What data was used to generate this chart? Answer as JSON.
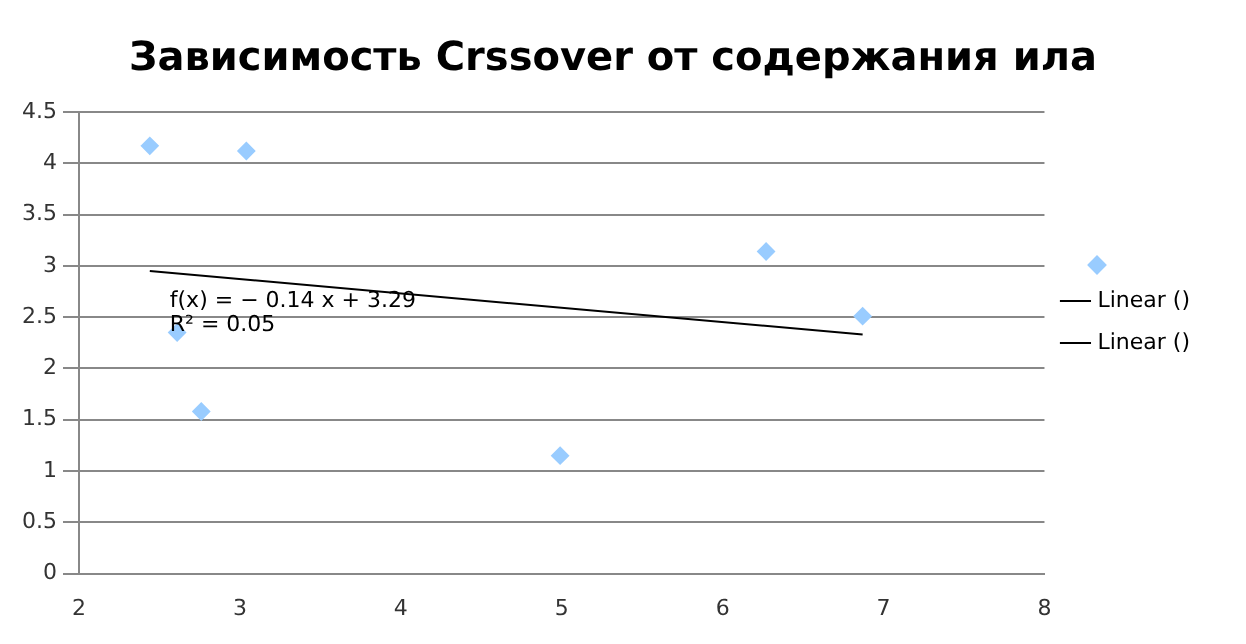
{
  "chart_data": {
    "type": "scatter",
    "title": "Зависимость Crssover от содержания ила",
    "series": [
      {
        "color": "#99ccff",
        "marker": "diamond",
        "x": [
          2.44,
          3.04,
          2.61,
          2.76,
          4.99,
          6.27,
          6.87
        ],
        "values": [
          4.17,
          4.12,
          2.35,
          1.58,
          1.15,
          3.14,
          2.51
        ]
      },
      {
        "type": "line",
        "name": "Linear ()",
        "color": "#000000",
        "marker": "none",
        "x": [
          2.44,
          6.87
        ],
        "values": [
          2.95,
          2.33
        ]
      },
      {
        "type": "line",
        "name": "Linear ()",
        "color": "#000000",
        "marker": "none"
      }
    ],
    "annotations": [
      "f(x) = − 0.14 x + 3.29",
      "R² = 0.05"
    ],
    "xlim": [
      2,
      8
    ],
    "xticks": [
      2,
      3,
      4,
      5,
      6,
      7,
      8
    ],
    "ylim": [
      0,
      4.5
    ],
    "yticks": [
      0,
      0.5,
      1,
      1.5,
      2,
      2.5,
      3,
      3.5,
      4,
      4.5
    ],
    "grid": "y",
    "legend": "right",
    "line_style": "solid"
  }
}
